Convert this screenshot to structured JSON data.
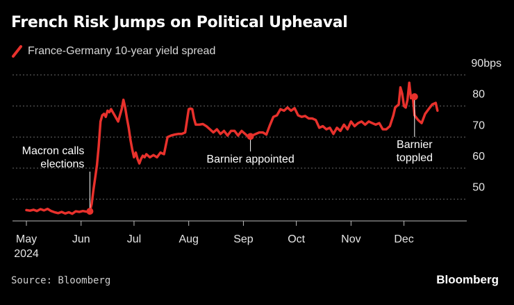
{
  "chart_data": {
    "type": "line",
    "title": "French Risk Jumps on Political Upheaval",
    "legend": "France-Germany 10-year yield spread",
    "ylabel": "90bps",
    "ylim": [
      43,
      94
    ],
    "yticks": [
      50,
      60,
      70,
      80
    ],
    "top_tick_label": "90bps",
    "xlim": [
      0,
      237
    ],
    "xticks": [
      {
        "x": 0,
        "label": "May",
        "sublabel": "2024"
      },
      {
        "x": 31,
        "label": "Jun",
        "sublabel": ""
      },
      {
        "x": 61,
        "label": "Jul",
        "sublabel": ""
      },
      {
        "x": 92,
        "label": "Aug",
        "sublabel": ""
      },
      {
        "x": 123,
        "label": "Sep",
        "sublabel": ""
      },
      {
        "x": 153,
        "label": "Oct",
        "sublabel": ""
      },
      {
        "x": 184,
        "label": "Nov",
        "sublabel": ""
      },
      {
        "x": 214,
        "label": "Dec",
        "sublabel": ""
      }
    ],
    "series": [
      {
        "name": "France-Germany 10-year yield spread",
        "color": "#e8312c",
        "x": [
          0,
          2,
          4,
          6,
          8,
          10,
          12,
          14,
          16,
          18,
          20,
          22,
          24,
          26,
          28,
          30,
          32,
          34,
          36,
          37,
          38,
          39,
          40,
          41,
          42,
          43,
          44,
          45,
          46,
          47,
          48,
          50,
          52,
          54,
          55,
          56,
          57,
          58,
          59,
          60,
          61,
          62,
          63,
          64,
          65,
          66,
          67,
          68,
          70,
          72,
          74,
          76,
          78,
          80,
          82,
          84,
          86,
          88,
          90,
          92,
          93,
          94,
          95,
          96,
          98,
          100,
          102,
          104,
          106,
          108,
          110,
          112,
          114,
          116,
          118,
          120,
          122,
          124,
          126,
          128,
          130,
          132,
          134,
          136,
          138,
          140,
          142,
          144,
          146,
          148,
          150,
          152,
          154,
          156,
          158,
          160,
          162,
          164,
          166,
          168,
          170,
          172,
          174,
          176,
          178,
          180,
          182,
          184,
          186,
          188,
          190,
          192,
          194,
          196,
          198,
          200,
          202,
          204,
          206,
          208,
          209,
          210,
          211,
          212,
          213,
          214,
          215,
          216,
          217,
          218,
          219,
          220,
          222,
          224,
          226,
          228,
          230,
          232,
          233
        ],
        "values": [
          46.5,
          46.3,
          46.6,
          46.2,
          46.8,
          46.4,
          46.9,
          46.2,
          45.8,
          45.5,
          45.9,
          45.4,
          45.8,
          45.3,
          46.1,
          45.9,
          46.2,
          46.0,
          46.1,
          48.5,
          53,
          57,
          61,
          67,
          75,
          77,
          77.5,
          76.5,
          78.5,
          78,
          79,
          77,
          75,
          79,
          82,
          79.5,
          76,
          73,
          69,
          66,
          63.5,
          65,
          63,
          61.5,
          63,
          64,
          63.5,
          64.5,
          63.5,
          64.2,
          63.5,
          65,
          64.5,
          70,
          70.5,
          70.8,
          71,
          71,
          71.5,
          79,
          79.2,
          79,
          76,
          74,
          74,
          74.2,
          73.5,
          72.5,
          71.5,
          72.5,
          71,
          72,
          70.5,
          72,
          72,
          70.5,
          72,
          71,
          70,
          70.5,
          71,
          71.5,
          71.5,
          70.8,
          73.8,
          76.5,
          77,
          79,
          78.5,
          79.5,
          78.5,
          79.3,
          77,
          76.5,
          76.8,
          76,
          76,
          75.5,
          73,
          73.5,
          72.5,
          73,
          71,
          73,
          72,
          74,
          72.5,
          75,
          73.5,
          74.5,
          75,
          74,
          75,
          74.5,
          74,
          74.5,
          72.5,
          72.5,
          73.5,
          77,
          79.5,
          80,
          80.5,
          86,
          84,
          80,
          79.5,
          82,
          87.5,
          82.5,
          83,
          77,
          75.5,
          74.5,
          77.5,
          79,
          80.5,
          81,
          78.5
        ]
      }
    ],
    "markers": [
      {
        "x": 36,
        "value": 46.1
      },
      {
        "x": 127,
        "value": 70.2
      },
      {
        "x": 220,
        "value": 83
      }
    ],
    "annotations": [
      {
        "x": 36,
        "value": 46.1,
        "lines": [
          "Macron calls",
          "elections"
        ],
        "align": "end"
      },
      {
        "x": 127,
        "value": 70.2,
        "lines": [
          "Barnier appointed"
        ],
        "align": "middle"
      },
      {
        "x": 220,
        "value": 83,
        "lines": [
          "Barnier",
          "toppled"
        ],
        "align": "middle"
      }
    ]
  },
  "footer": {
    "source": "Source: Bloomberg",
    "brand": "Bloomberg"
  }
}
